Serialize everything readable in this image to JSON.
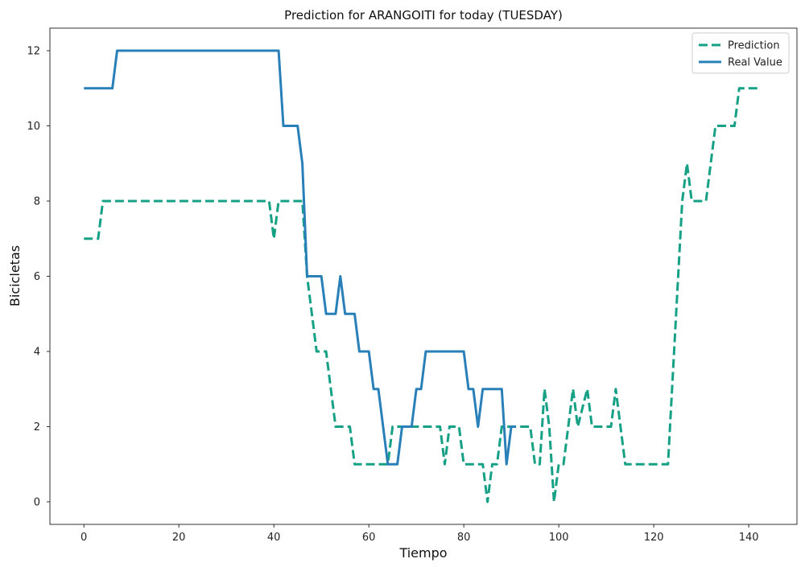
{
  "chart_data": {
    "type": "line",
    "title": "Prediction for ARANGOITI for today (TUESDAY)",
    "xlabel": "Tiempo",
    "ylabel": "Bicicletas",
    "xlim": [
      -7.15,
      150.15
    ],
    "ylim": [
      -0.6,
      12.6
    ],
    "xticks": [
      0,
      20,
      40,
      60,
      80,
      100,
      120,
      140
    ],
    "yticks": [
      0,
      2,
      4,
      6,
      8,
      10,
      12
    ],
    "grid": false,
    "legend_position": "top-right",
    "series": [
      {
        "name": "Prediction",
        "color": "#16a085",
        "dash": "dashed",
        "points": [
          [
            0,
            7
          ],
          [
            3,
            7
          ],
          [
            4,
            8
          ],
          [
            39,
            8
          ],
          [
            40,
            7
          ],
          [
            41,
            8
          ],
          [
            46,
            8
          ],
          [
            47,
            6
          ],
          [
            48,
            5
          ],
          [
            49,
            4
          ],
          [
            51,
            4
          ],
          [
            53,
            2
          ],
          [
            56,
            2
          ],
          [
            57,
            1
          ],
          [
            63,
            1
          ],
          [
            64,
            1
          ],
          [
            65,
            2
          ],
          [
            75,
            2
          ],
          [
            76,
            1
          ],
          [
            77,
            2
          ],
          [
            79,
            2
          ],
          [
            80,
            1
          ],
          [
            84,
            1
          ],
          [
            85,
            0
          ],
          [
            86,
            1
          ],
          [
            87,
            1
          ],
          [
            88,
            2
          ],
          [
            94,
            2
          ],
          [
            95,
            1
          ],
          [
            96,
            1
          ],
          [
            97,
            3
          ],
          [
            98,
            2
          ],
          [
            99,
            0
          ],
          [
            100,
            1
          ],
          [
            101,
            1
          ],
          [
            103,
            3
          ],
          [
            104,
            2
          ],
          [
            106,
            3
          ],
          [
            107,
            2
          ],
          [
            111,
            2
          ],
          [
            112,
            3
          ],
          [
            113,
            2
          ],
          [
            114,
            1
          ],
          [
            123,
            1
          ],
          [
            126,
            8
          ],
          [
            127,
            9
          ],
          [
            128,
            8
          ],
          [
            131,
            8
          ],
          [
            133,
            10
          ],
          [
            137,
            10
          ],
          [
            138,
            11
          ],
          [
            142,
            11
          ]
        ]
      },
      {
        "name": "Real Value",
        "color": "#2980b9",
        "dash": "solid",
        "points": [
          [
            0,
            11
          ],
          [
            6,
            11
          ],
          [
            7,
            12
          ],
          [
            41,
            12
          ],
          [
            42,
            10
          ],
          [
            45,
            10
          ],
          [
            46,
            9
          ],
          [
            47,
            6
          ],
          [
            50,
            6
          ],
          [
            51,
            5
          ],
          [
            53,
            5
          ],
          [
            54,
            6
          ],
          [
            55,
            5
          ],
          [
            57,
            5
          ],
          [
            58,
            4
          ],
          [
            60,
            4
          ],
          [
            61,
            3
          ],
          [
            62,
            3
          ],
          [
            64,
            1
          ],
          [
            66,
            1
          ],
          [
            67,
            2
          ],
          [
            69,
            2
          ],
          [
            70,
            3
          ],
          [
            71,
            3
          ],
          [
            72,
            4
          ],
          [
            80,
            4
          ],
          [
            81,
            3
          ],
          [
            82,
            3
          ],
          [
            83,
            2
          ],
          [
            84,
            3
          ],
          [
            88,
            3
          ],
          [
            89,
            1
          ],
          [
            90,
            2
          ],
          [
            91,
            2
          ]
        ]
      }
    ]
  }
}
